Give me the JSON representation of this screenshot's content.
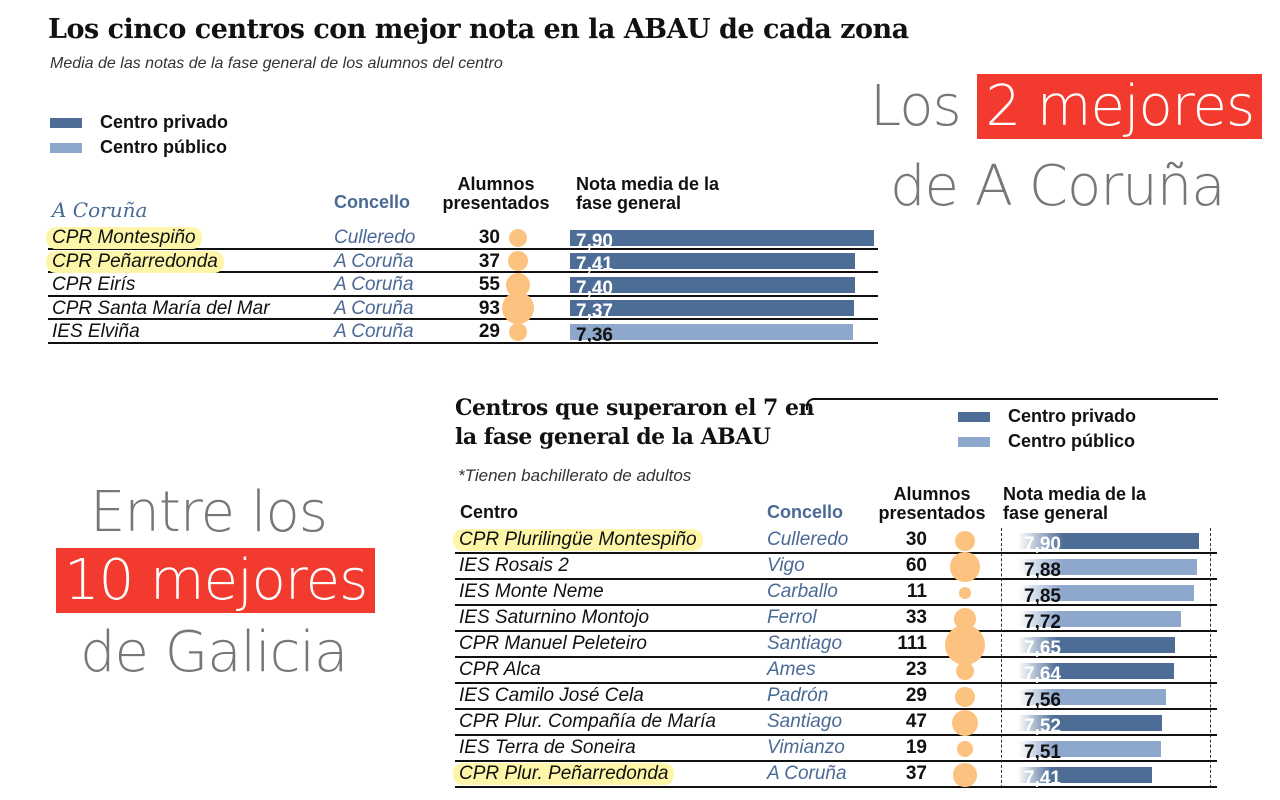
{
  "colors": {
    "privado": "#4d6d97",
    "publico": "#8ea7cc",
    "bubble": "#fcc27f",
    "highlight_red": "#f23b2e",
    "highlight_yellow": "#fdf6a8"
  },
  "chart_data": [
    {
      "type": "table",
      "title": "Los cinco centros con mejor nota en la ABAU de cada zona",
      "subtitle": "Media de las notas de la fase general de los alumnos del centro",
      "legend": [
        "Centro privado",
        "Centro público"
      ],
      "zone": "A Coruña",
      "headers": {
        "concello": "Concello",
        "alumnos": "Alumnos presentados",
        "nota": "Nota media de la fase general"
      },
      "rows": [
        {
          "centro": "CPR Montespiño",
          "concello": "Culleredo",
          "alumnos": 30,
          "nota": "7,90",
          "value": 7.9,
          "tipo": "privado",
          "highlight": true
        },
        {
          "centro": "CPR Peñarredonda",
          "concello": "A Coruña",
          "alumnos": 37,
          "nota": "7,41",
          "value": 7.41,
          "tipo": "privado",
          "highlight": true
        },
        {
          "centro": "CPR Eirís",
          "concello": "A Coruña",
          "alumnos": 55,
          "nota": "7,40",
          "value": 7.4,
          "tipo": "privado",
          "highlight": false
        },
        {
          "centro": "CPR Santa María del Mar",
          "concello": "A Coruña",
          "alumnos": 93,
          "nota": "7,37",
          "value": 7.37,
          "tipo": "privado",
          "highlight": false
        },
        {
          "centro": "IES Elviña",
          "concello": "A Coruña",
          "alumnos": 29,
          "nota": "7,36",
          "value": 7.36,
          "tipo": "publico",
          "highlight": false
        }
      ]
    },
    {
      "type": "table",
      "title": "Centros que superaron el 7 en la fase general de la ABAU",
      "note": "*Tienen bachillerato de adultos",
      "legend": [
        "Centro privado",
        "Centro público"
      ],
      "headers": {
        "centro": "Centro",
        "concello": "Concello",
        "alumnos": "Alumnos presentados",
        "nota": "Nota media de la fase general"
      },
      "rows": [
        {
          "centro": "CPR Plurilingüe Montespiño",
          "concello": "Culleredo",
          "alumnos": 30,
          "nota": "7,90",
          "value": 7.9,
          "tipo": "privado",
          "highlight": true
        },
        {
          "centro": "IES Rosais 2",
          "concello": "Vigo",
          "alumnos": 60,
          "nota": "7,88",
          "value": 7.88,
          "tipo": "publico",
          "highlight": false
        },
        {
          "centro": "IES Monte Neme",
          "concello": "Carballo",
          "alumnos": 11,
          "nota": "7,85",
          "value": 7.85,
          "tipo": "publico",
          "highlight": false
        },
        {
          "centro": "IES Saturnino Montojo",
          "concello": "Ferrol",
          "alumnos": 33,
          "nota": "7,72",
          "value": 7.72,
          "tipo": "publico",
          "highlight": false
        },
        {
          "centro": "CPR Manuel Peleteiro",
          "concello": "Santiago",
          "alumnos": 111,
          "nota": "7,65",
          "value": 7.65,
          "tipo": "privado",
          "highlight": false
        },
        {
          "centro": "CPR Alca",
          "concello": "Ames",
          "alumnos": 23,
          "nota": "7,64",
          "value": 7.64,
          "tipo": "privado",
          "highlight": false
        },
        {
          "centro": "IES Camilo José Cela",
          "concello": "Padrón",
          "alumnos": 29,
          "nota": "7,56",
          "value": 7.56,
          "tipo": "publico",
          "highlight": false
        },
        {
          "centro": "CPR Plur. Compañía de María",
          "concello": "Santiago",
          "alumnos": 47,
          "nota": "7,52",
          "value": 7.52,
          "tipo": "privado",
          "highlight": false
        },
        {
          "centro": "IES Terra de Soneira",
          "concello": "Vimianzo",
          "alumnos": 19,
          "nota": "7,51",
          "value": 7.51,
          "tipo": "publico",
          "highlight": false
        },
        {
          "centro": "CPR Plur. Peñarredonda",
          "concello": "A Coruña",
          "alumnos": 37,
          "nota": "7,41",
          "value": 7.41,
          "tipo": "privado",
          "highlight": true
        }
      ]
    }
  ],
  "callouts": {
    "top_1": "Los",
    "top_2": "2 mejores",
    "top_3": "de A Coruña",
    "left_1": "Entre los",
    "left_2": "10 mejores",
    "left_3": "de Galicia"
  }
}
